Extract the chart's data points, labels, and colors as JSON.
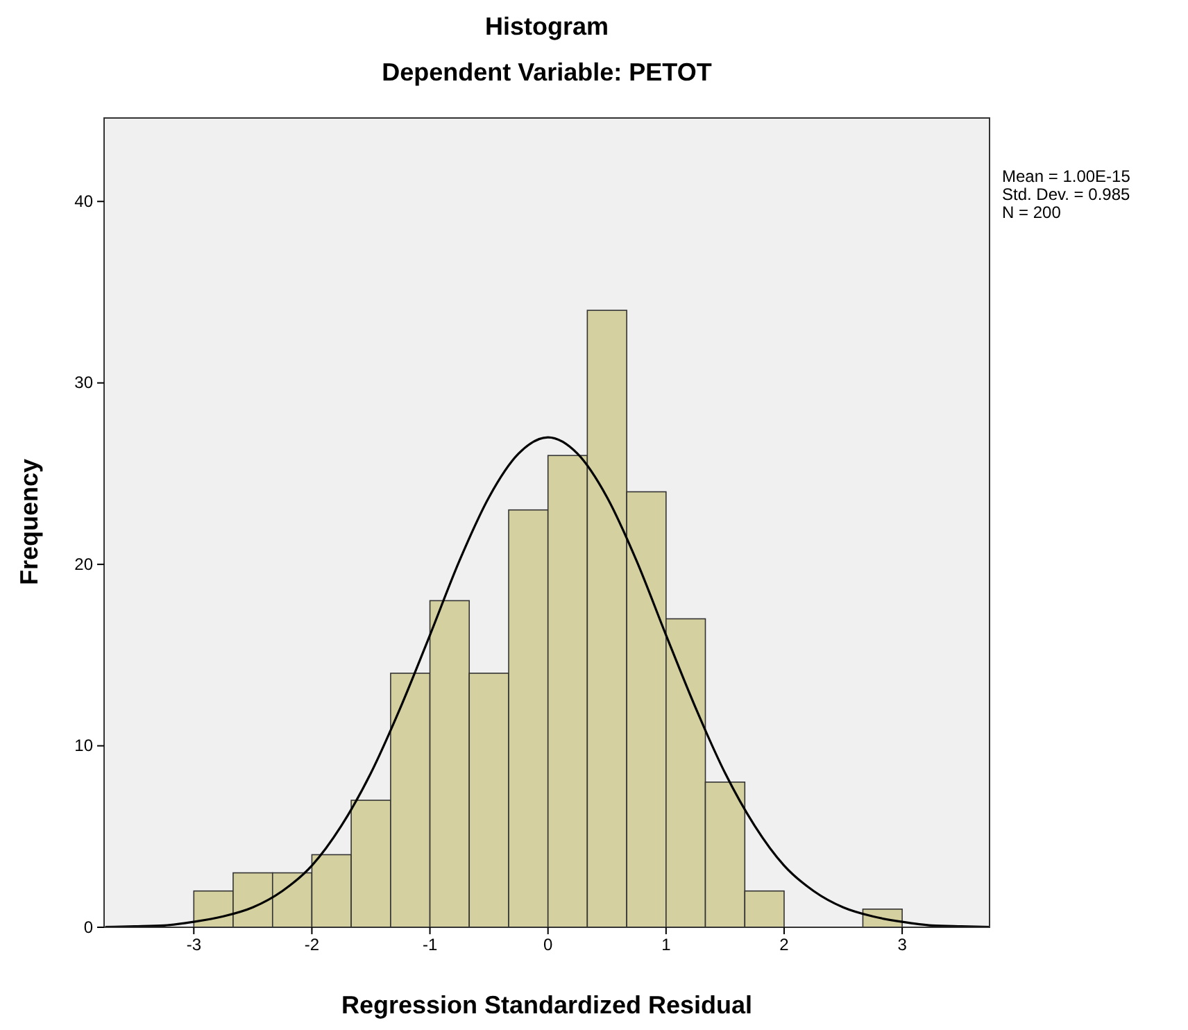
{
  "chart_data": {
    "type": "histogram",
    "title": "Histogram",
    "subtitle": "Dependent Variable: PETOT",
    "xlabel": "Regression Standardized Residual",
    "ylabel": "Frequency",
    "bins": [
      -3,
      -2.667,
      -2.333,
      -2,
      -1.667,
      -1.333,
      -1,
      -0.667,
      -0.333,
      0,
      0.333,
      0.667,
      1,
      1.333,
      1.667,
      2,
      2.333,
      2.667,
      3
    ],
    "values": [
      2,
      3,
      3,
      4,
      7,
      14,
      18,
      14,
      23,
      26,
      34,
      24,
      17,
      8,
      2,
      0,
      0,
      1
    ],
    "color": "#d4d09f",
    "series": [
      {
        "type": "line",
        "color": "#000000",
        "x": [
          -3.75,
          -3.5,
          -3.25,
          -3,
          -2.75,
          -2.5,
          -2.25,
          -2,
          -1.75,
          -1.5,
          -1.25,
          -1,
          -0.75,
          -0.5,
          -0.25,
          0,
          0.25,
          0.5,
          0.75,
          1,
          1.25,
          1.5,
          1.75,
          2,
          2.25,
          2.5,
          2.75,
          3,
          3.25,
          3.5,
          3.74
        ],
        "values": [
          0.02,
          0.05,
          0.1,
          0.3,
          0.6,
          1.1,
          2,
          3.4,
          5.6,
          8.5,
          12.1,
          16.1,
          20.2,
          23.7,
          26.1,
          27,
          26.1,
          23.7,
          20.2,
          16.1,
          12.1,
          8.5,
          5.6,
          3.4,
          2,
          1.1,
          0.6,
          0.3,
          0.1,
          0.05,
          0.02
        ]
      }
    ],
    "xlim": [
      -3.76,
      3.74
    ],
    "ylim": [
      0,
      44.6
    ],
    "xticks": [
      -3,
      -2,
      -1,
      0,
      1,
      2,
      3
    ],
    "yticks": [
      0,
      10,
      20,
      30,
      40
    ],
    "grid": false,
    "annotations": [
      "Mean = 1.00E-15",
      "Std. Dev. = 0.985",
      "N = 200"
    ]
  }
}
